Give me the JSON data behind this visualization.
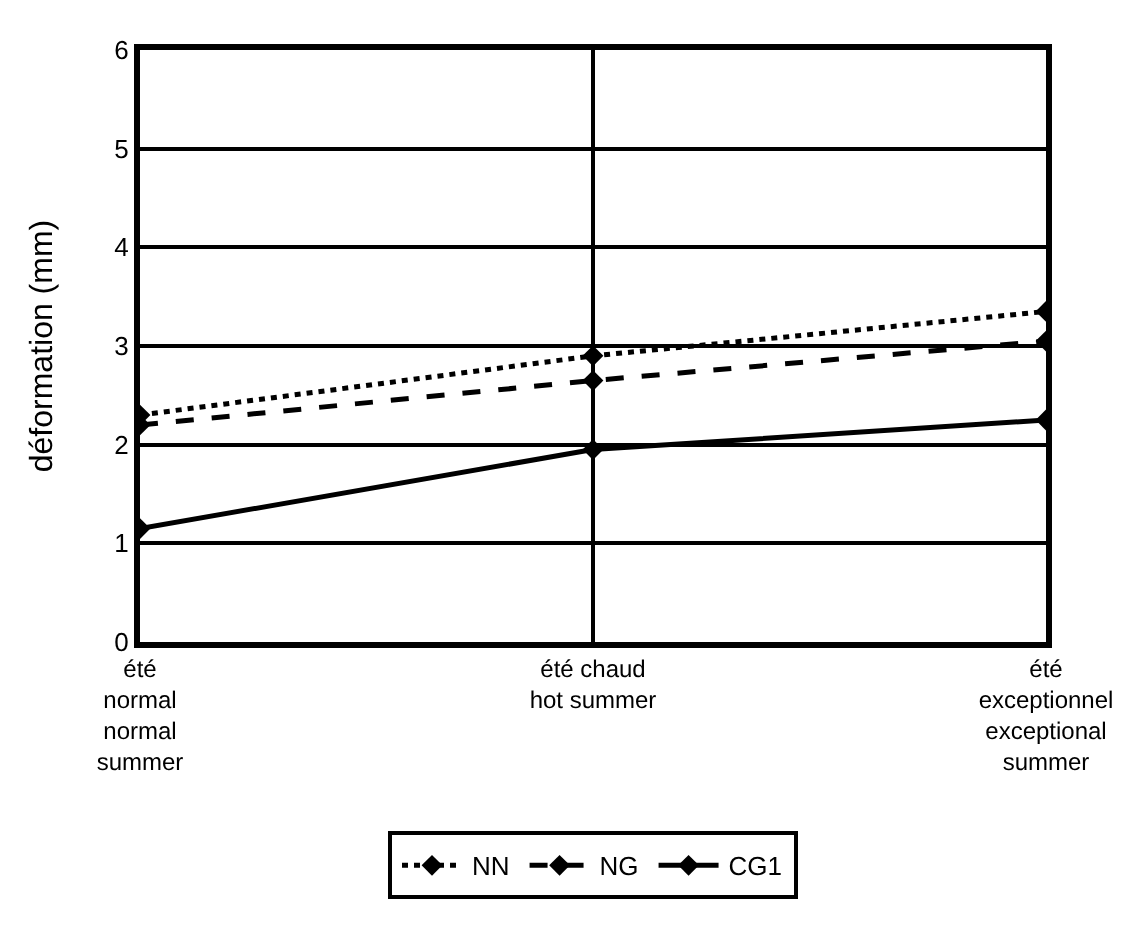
{
  "chart_data": {
    "type": "line",
    "ylabel": "déformation (mm)",
    "categories": [
      "été\nnormal\nnormal\nsummer",
      "été chaud\nhot summer",
      "été\nexceptionnel\nexceptional\nsummer"
    ],
    "series": [
      {
        "name": "NN",
        "color": "#000000",
        "line_style": "dotted",
        "values": [
          2.3,
          2.9,
          3.35
        ]
      },
      {
        "name": "NG",
        "color": "#000000",
        "line_style": "dashed",
        "values": [
          2.2,
          2.65,
          3.05
        ]
      },
      {
        "name": "CG1",
        "color": "#000000",
        "line_style": "solid",
        "values": [
          1.15,
          1.95,
          2.25
        ]
      }
    ],
    "ylim": [
      0,
      6
    ],
    "yticks": [
      0,
      1,
      2,
      3,
      4,
      5,
      6
    ],
    "grid": true,
    "legend": "bottom",
    "marker": "diamond"
  }
}
